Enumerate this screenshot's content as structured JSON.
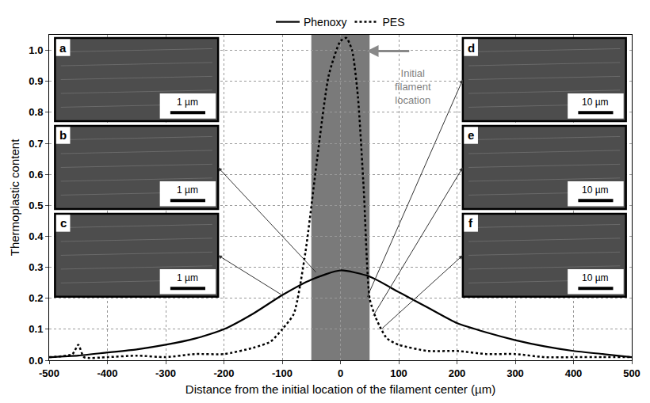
{
  "chart_data": {
    "type": "line",
    "x_label": "Distance from the initial location of the filament center (µm)",
    "y_label": "Thermoplastic content",
    "xlim": [
      -500,
      500
    ],
    "xticks": [
      -500,
      -400,
      -300,
      -200,
      -100,
      0,
      100,
      200,
      300,
      400,
      500
    ],
    "ylim": [
      0,
      1.05
    ],
    "yticks": [
      {
        "value": 0,
        "label": "0.0"
      },
      0.1,
      0.2,
      0.3,
      0.4,
      0.5,
      0.6,
      0.7,
      0.8,
      0.9,
      {
        "value": 1,
        "label": "1.0"
      }
    ],
    "grid": true,
    "legend": "top",
    "series": [
      {
        "name": "Phenoxy",
        "color": "#000000",
        "line_style": "solid",
        "x": [
          -500,
          -450,
          -400,
          -350,
          -300,
          -250,
          -200,
          -150,
          -100,
          -50,
          0,
          50,
          100,
          150,
          200,
          250,
          300,
          350,
          400,
          450,
          500
        ],
        "values": [
          0.01,
          0.015,
          0.025,
          0.035,
          0.05,
          0.07,
          0.1,
          0.15,
          0.21,
          0.26,
          0.29,
          0.27,
          0.22,
          0.17,
          0.12,
          0.09,
          0.065,
          0.045,
          0.03,
          0.02,
          0.01
        ]
      },
      {
        "name": "PES",
        "color": "#000000",
        "line_style": "dotted",
        "x": [
          -500,
          -460,
          -450,
          -440,
          -400,
          -350,
          -300,
          -250,
          -200,
          -150,
          -120,
          -100,
          -80,
          -60,
          -40,
          -20,
          0,
          10,
          20,
          30,
          40,
          50,
          60,
          70,
          80,
          100,
          150,
          200,
          250,
          300,
          350,
          400,
          450,
          500
        ],
        "values": [
          0.01,
          0.02,
          0.05,
          0.01,
          0.01,
          0.015,
          0.01,
          0.02,
          0.02,
          0.04,
          0.06,
          0.1,
          0.15,
          0.35,
          0.65,
          0.92,
          1.03,
          1.04,
          1.0,
          0.85,
          0.55,
          0.2,
          0.14,
          0.1,
          0.07,
          0.05,
          0.03,
          0.03,
          0.02,
          0.02,
          0.01,
          0.01,
          0.01,
          0.01
        ]
      }
    ],
    "shaded_region": {
      "x": [
        -50,
        50
      ],
      "label": "Initial filament location"
    },
    "insets": [
      {
        "label": "a",
        "scale_bar": "1 µm"
      },
      {
        "label": "b",
        "scale_bar": "1 µm",
        "from": [
          -40,
          0.28
        ]
      },
      {
        "label": "c",
        "scale_bar": "1 µm",
        "from": [
          -100,
          0.21
        ]
      },
      {
        "label": "d",
        "scale_bar": "10 µm",
        "from": [
          45,
          0.2
        ]
      },
      {
        "label": "e",
        "scale_bar": "10 µm",
        "from": [
          55,
          0.14
        ]
      },
      {
        "label": "f",
        "scale_bar": "10 µm",
        "from": [
          70,
          0.1
        ]
      }
    ]
  }
}
